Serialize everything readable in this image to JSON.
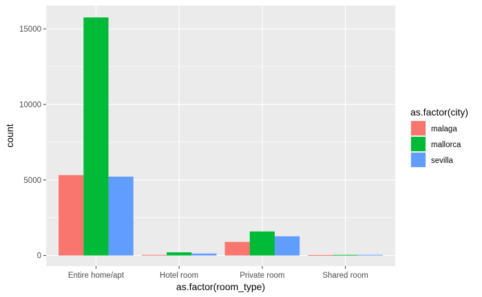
{
  "chart_data": {
    "type": "bar",
    "title": "",
    "xlabel": "as.factor(room_type)",
    "ylabel": "count",
    "categories": [
      "Entire home/apt",
      "Hotel room",
      "Private room",
      "Shared room"
    ],
    "series": [
      {
        "name": "malaga",
        "color": "#F8766D",
        "values": [
          5320,
          40,
          900,
          30
        ]
      },
      {
        "name": "mallorca",
        "color": "#00BA38",
        "values": [
          15760,
          210,
          1590,
          40
        ]
      },
      {
        "name": "sevilla",
        "color": "#619CFF",
        "values": [
          5220,
          130,
          1270,
          45
        ]
      }
    ],
    "ylim": [
      -700,
      16550
    ],
    "yticks": [
      0,
      5000,
      10000,
      15000
    ],
    "ytick_labels": [
      "0",
      "5000",
      "10000",
      "15000"
    ],
    "grid": true,
    "legend": {
      "title": "as.factor(city)",
      "position": "right"
    }
  }
}
